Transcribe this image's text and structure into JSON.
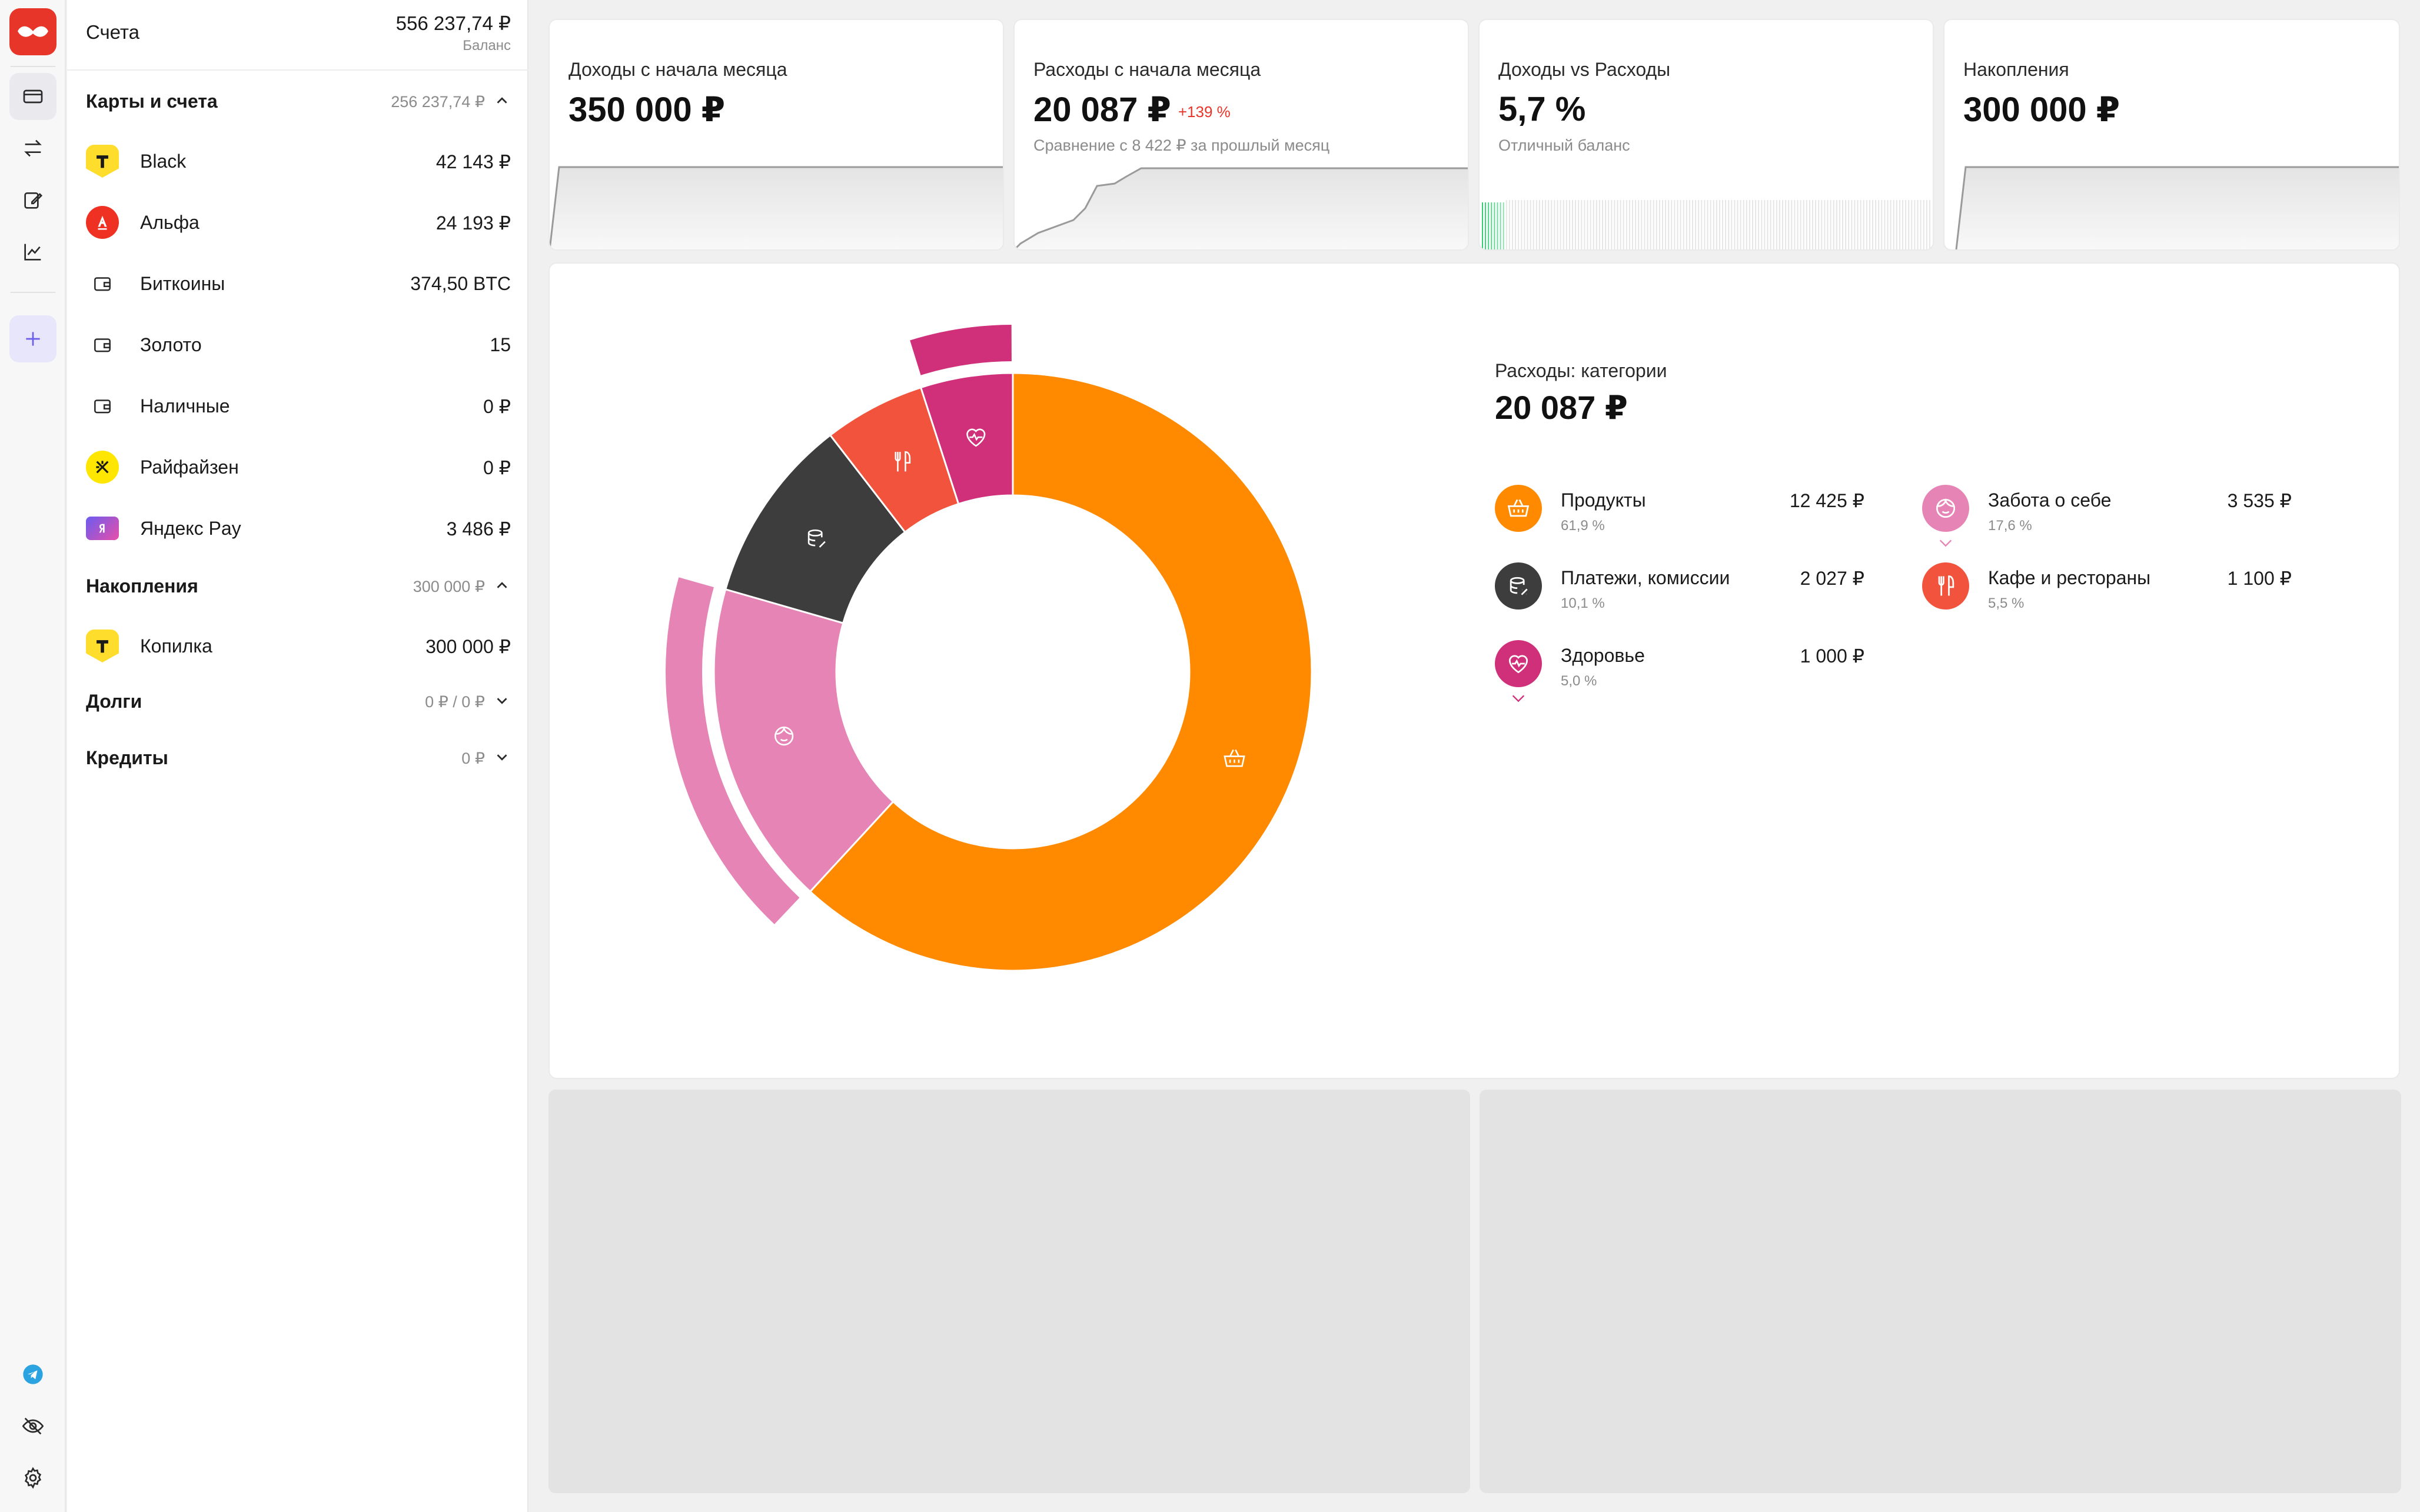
{
  "sidebar": {
    "title": "Счета",
    "balance": "556 237,74 ₽",
    "balance_caption": "Баланс",
    "groups": {
      "cards": {
        "label": "Карты и счета",
        "value": "256 237,74 ₽"
      },
      "savings": {
        "label": "Накопления",
        "value": "300 000 ₽"
      },
      "debts": {
        "label": "Долги",
        "value": "0 ₽ / 0 ₽"
      },
      "credits": {
        "label": "Кредиты",
        "value": "0 ₽"
      }
    },
    "accounts": [
      {
        "name": "Black",
        "value": "42 143 ₽",
        "icon": "tinkoff-logo-icon"
      },
      {
        "name": "Альфа",
        "value": "24 193 ₽",
        "icon": "alfa-logo-icon"
      },
      {
        "name": "Биткоины",
        "value": "374,50 BTC",
        "icon": "wallet-icon"
      },
      {
        "name": "Золото",
        "value": "15",
        "icon": "wallet-icon"
      },
      {
        "name": "Наличные",
        "value": "0 ₽",
        "icon": "wallet-icon"
      },
      {
        "name": "Райфайзен",
        "value": "0 ₽",
        "icon": "raiffeisen-logo-icon"
      },
      {
        "name": "Яндекс Pay",
        "value": "3 486 ₽",
        "icon": "yandex-pay-logo-icon"
      }
    ],
    "savings_accounts": [
      {
        "name": "Копилка",
        "value": "300 000 ₽",
        "icon": "tinkoff-logo-icon"
      }
    ]
  },
  "summary": {
    "income": {
      "title": "Доходы с начала месяца",
      "value": "350 000 ₽"
    },
    "expenses": {
      "title": "Расходы с начала месяца",
      "value": "20 087 ₽",
      "badge": "+139 %",
      "subtitle": "Сравнение с 8 422 ₽ за прошлый месяц"
    },
    "ratio": {
      "title": "Доходы vs Расходы",
      "value": "5,7 %",
      "subtitle": "Отличный баланс"
    },
    "savings": {
      "title": "Накопления",
      "value": "300 000 ₽"
    }
  },
  "categories": {
    "title": "Расходы: категории",
    "total": "20 087 ₽",
    "items": [
      {
        "name": "Продукты",
        "value": "12 425 ₽",
        "percent": "61,9 %",
        "color": "#ff8a00",
        "icon": "basket-icon"
      },
      {
        "name": "Забота о себе",
        "value": "3 535 ₽",
        "percent": "17,6 %",
        "color": "#e685b5",
        "icon": "face-icon"
      },
      {
        "name": "Платежи, комиссии",
        "value": "2 027 ₽",
        "percent": "10,1 %",
        "color": "#3d3d3d",
        "icon": "coins-icon"
      },
      {
        "name": "Кафе и рестораны",
        "value": "1 100 ₽",
        "percent": "5,5 %",
        "color": "#f2533c",
        "icon": "fork-knife-icon"
      },
      {
        "name": "Здоровье",
        "value": "1 000 ₽",
        "percent": "5,0 %",
        "color": "#d0307a",
        "icon": "heart-pulse-icon"
      }
    ]
  },
  "chart_data": {
    "type": "pie",
    "categories": [
      "Продукты",
      "Забота о себе",
      "Платежи, комиссии",
      "Кафе и рестораны",
      "Здоровье"
    ],
    "values": [
      12425,
      3535,
      2027,
      1100,
      1000
    ],
    "colors": [
      "#ff8a00",
      "#e685b5",
      "#3d3d3d",
      "#f2533c",
      "#d0307a"
    ],
    "outer_ring_for": [
      "Забота о себе",
      "Здоровье"
    ]
  }
}
